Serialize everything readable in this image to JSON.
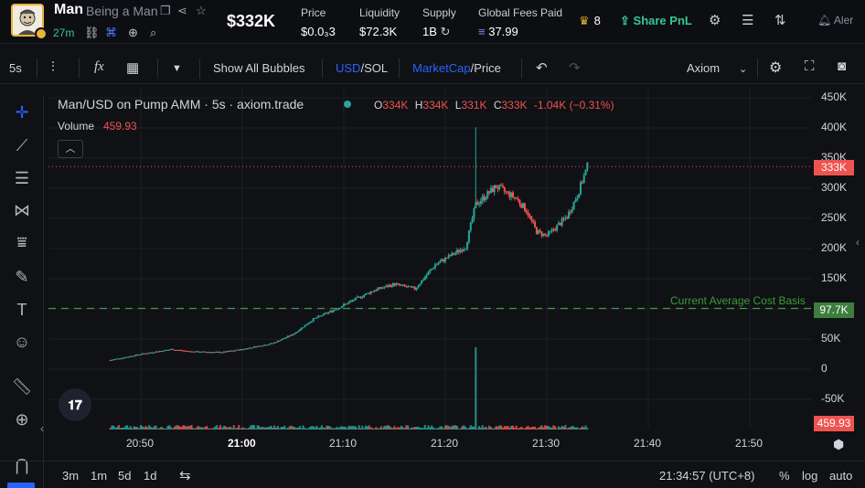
{
  "header": {
    "token_symbol": "Man",
    "token_name": "Being a Man",
    "age": "27m",
    "market_cap": "$332K",
    "stats": [
      {
        "label": "Price",
        "value": "$0.0₃3"
      },
      {
        "label": "Liquidity",
        "value": "$72.3K"
      },
      {
        "label": "Supply",
        "value": "1B"
      },
      {
        "label": "Global Fees Paid",
        "value": "37.99"
      }
    ],
    "holders_count": "8",
    "share_pnl_label": "Share PnL",
    "alert_label": "Aler"
  },
  "toolbar": {
    "interval": "5s",
    "show_all_bubbles": "Show All Bubbles",
    "currency_usd": "USD",
    "currency_sep": "/",
    "currency_sol": "SOL",
    "metric_marketcap": "MarketCap",
    "metric_sep": "/",
    "metric_price": "Price",
    "layout_name": "Axiom"
  },
  "legend": {
    "title": "Man/USD on Pump AMM · 5s · axiom.trade",
    "open_label": "O",
    "open": "334K",
    "high_label": "H",
    "high": "334K",
    "low_label": "L",
    "low": "331K",
    "close_label": "C",
    "close": "333K",
    "change": "-1.04K (−0.31%)",
    "volume_label": "Volume",
    "volume_value": "459.93"
  },
  "price_axis": {
    "ticks": [
      "450K",
      "400K",
      "350K",
      "300K",
      "250K",
      "200K",
      "150K",
      "100K",
      "50K",
      "0",
      "-50K"
    ],
    "current_price_tag": "333K",
    "cost_basis_tag": "97.7K",
    "volume_tag": "459.93"
  },
  "cost_basis_label": "Current Average Cost Basis",
  "time_axis": {
    "ticks": [
      "20:50",
      "21:00",
      "21:10",
      "21:20",
      "21:30",
      "21:40",
      "21:50"
    ],
    "bold_tick": "21:00"
  },
  "bottom": {
    "ranges": [
      "3m",
      "1m",
      "5d",
      "1d"
    ],
    "clock": "21:34:57 (UTC+8)",
    "percent": "%",
    "log": "log",
    "auto": "auto"
  },
  "colors": {
    "up": "#26a69a",
    "down": "#ef5350",
    "accent": "#2962ff",
    "cost_basis": "#3d9b3d",
    "positive": "#36c790"
  },
  "chart_data": {
    "type": "candlestick",
    "interval": "5s",
    "x_unit": "time",
    "y_unit": "market cap (USD)",
    "ylim": [
      -75000,
      460000
    ],
    "xlim": [
      "20:45",
      "21:56"
    ],
    "current_price": 333000,
    "cost_basis": 97700,
    "trend": [
      {
        "time": "20:47",
        "value": 12000
      },
      {
        "time": "20:50",
        "value": 22000
      },
      {
        "time": "20:53",
        "value": 30000
      },
      {
        "time": "20:55",
        "value": 26000
      },
      {
        "time": "20:58",
        "value": 25000
      },
      {
        "time": "21:00",
        "value": 30000
      },
      {
        "time": "21:03",
        "value": 40000
      },
      {
        "time": "21:05",
        "value": 55000
      },
      {
        "time": "21:07",
        "value": 80000
      },
      {
        "time": "21:09",
        "value": 95000
      },
      {
        "time": "21:11",
        "value": 112000
      },
      {
        "time": "21:13",
        "value": 128000
      },
      {
        "time": "21:15",
        "value": 138000
      },
      {
        "time": "21:17",
        "value": 130000
      },
      {
        "time": "21:19",
        "value": 170000
      },
      {
        "time": "21:21",
        "value": 190000
      },
      {
        "time": "21:22",
        "value": 200000
      },
      {
        "time": "21:23",
        "value": 270000
      },
      {
        "time": "21:24",
        "value": 285000
      },
      {
        "time": "21:25",
        "value": 300000
      },
      {
        "time": "21:27",
        "value": 280000
      },
      {
        "time": "21:28",
        "value": 260000
      },
      {
        "time": "21:29",
        "value": 225000
      },
      {
        "time": "21:30",
        "value": 218000
      },
      {
        "time": "21:32",
        "value": 250000
      },
      {
        "time": "21:33",
        "value": 285000
      },
      {
        "time": "21:34",
        "value": 333000
      }
    ],
    "spike": {
      "time": "21:23",
      "high": 398000
    }
  }
}
